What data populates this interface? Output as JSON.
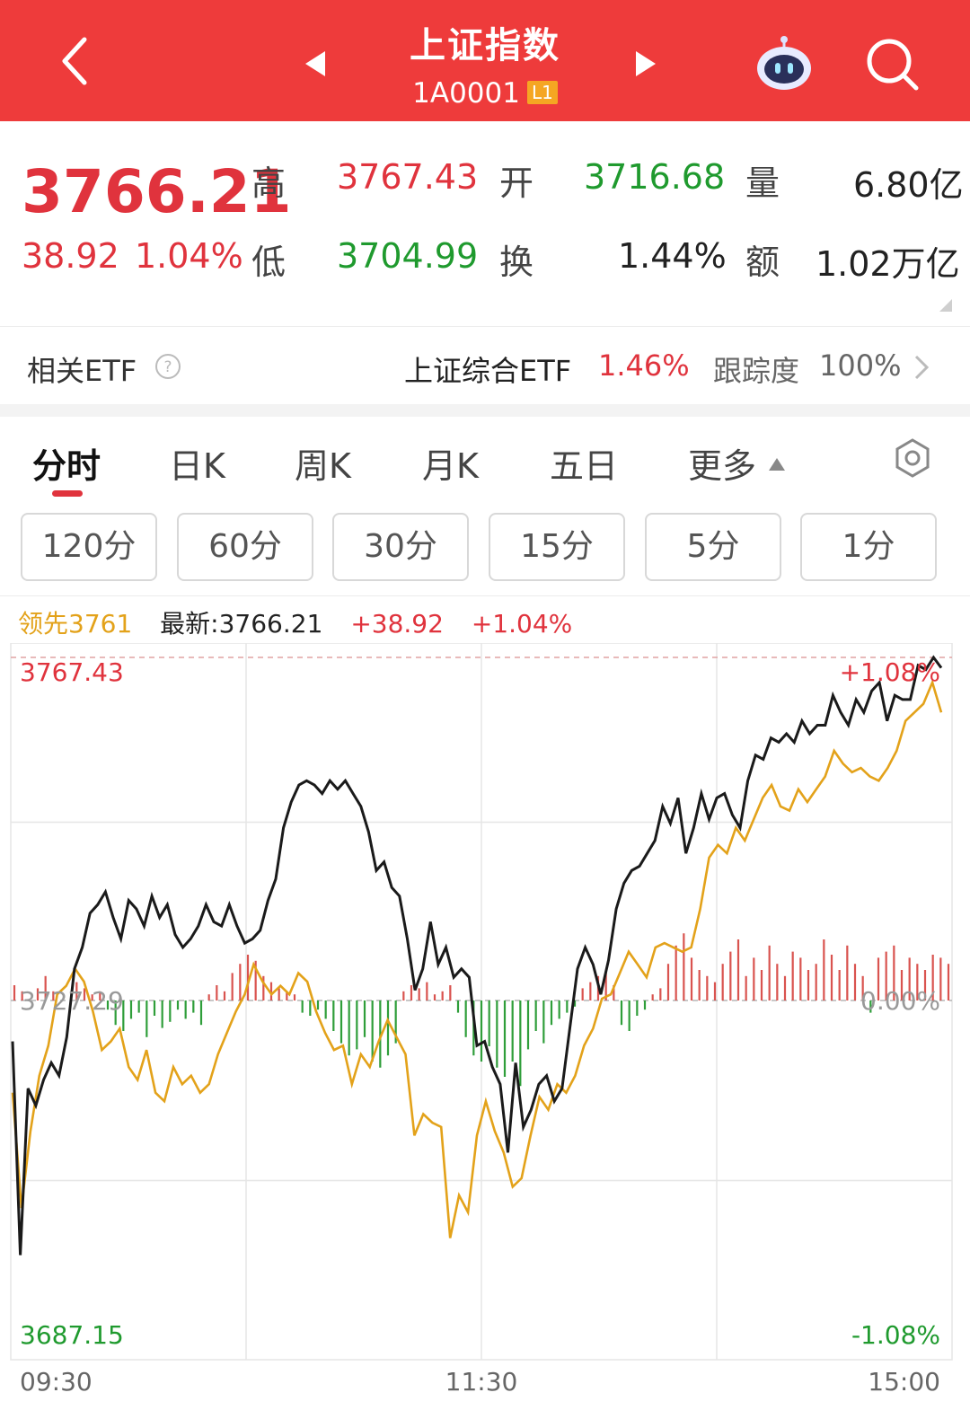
{
  "header": {
    "title": "上证指数",
    "code": "1A0001",
    "level_badge": "L1",
    "bg_color": "#ee3b3b"
  },
  "quote": {
    "price": "3766.21",
    "change": "38.92",
    "change_pct": "1.04%",
    "high_label": "高",
    "high": "3767.43",
    "low_label": "低",
    "low": "3704.99",
    "open_label": "开",
    "open": "3716.68",
    "turnover_label": "换",
    "turnover": "1.44%",
    "volume_label": "量",
    "volume": "6.80亿",
    "amount_label": "额",
    "amount": "1.02万亿",
    "up_color": "#e0333d",
    "down_color": "#1f9a2e"
  },
  "etf": {
    "label": "相关ETF",
    "name": "上证综合ETF",
    "pct": "1.46%",
    "track_label": "跟踪度",
    "track_value": "100%"
  },
  "tabs": [
    "分时",
    "日K",
    "周K",
    "月K",
    "五日",
    "更多"
  ],
  "active_tab": "分时",
  "periods": [
    "120分",
    "60分",
    "30分",
    "15分",
    "5分",
    "1分"
  ],
  "legend": {
    "lead": "领先3761",
    "latest": "最新:3766.21",
    "change": "+38.92",
    "pct": "+1.04%"
  },
  "chart_data": {
    "type": "line",
    "y_top_label": "3767.43",
    "y_mid_label": "3727.29",
    "y_bottom_label": "3687.15",
    "pct_top_label": "+1.08%",
    "pct_mid_label": "0.00%",
    "pct_bottom_label": "-1.08%",
    "x_labels": [
      "09:30",
      "11:30",
      "15:00"
    ],
    "ylim": [
      3687.15,
      3767.43
    ],
    "y_ref": 3727.29,
    "price_color": "#1a1a1a",
    "lead_color": "#e3a21a",
    "price": [
      3722.5,
      3697.5,
      3717.0,
      3715.0,
      3718.0,
      3720.0,
      3718.5,
      3723.0,
      3731.0,
      3733.5,
      3737.5,
      3738.5,
      3740.0,
      3737.0,
      3734.5,
      3739.0,
      3738.0,
      3736.0,
      3739.5,
      3737.0,
      3738.5,
      3735.0,
      3733.5,
      3734.5,
      3736.0,
      3738.5,
      3736.5,
      3736.0,
      3738.5,
      3736.0,
      3734.0,
      3734.5,
      3735.5,
      3739.0,
      3741.5,
      3747.5,
      3750.5,
      3752.5,
      3753.0,
      3752.5,
      3751.5,
      3753.0,
      3752.0,
      3753.0,
      3751.5,
      3750.0,
      3747.0,
      3742.5,
      3743.5,
      3740.5,
      3739.5,
      3734.5,
      3728.5,
      3731.0,
      3736.5,
      3731.5,
      3733.5,
      3730.0,
      3731.0,
      3730.0,
      3722.0,
      3722.5,
      3719.5,
      3717.5,
      3709.5,
      3720.0,
      3712.5,
      3714.5,
      3717.5,
      3718.5,
      3715.5,
      3717.0,
      3724.0,
      3731.0,
      3733.5,
      3731.5,
      3728.0,
      3732.0,
      3738.0,
      3741.0,
      3742.5,
      3743.0,
      3744.5,
      3746.0,
      3750.0,
      3748.0,
      3751.0,
      3744.5,
      3747.5,
      3751.5,
      3748.5,
      3751.0,
      3751.5,
      3749.0,
      3747.5,
      3753.0,
      3756.0,
      3755.5,
      3758.0,
      3757.5,
      3758.5,
      3757.5,
      3760.0,
      3758.5,
      3759.5,
      3759.5,
      3763.0,
      3761.0,
      3759.5,
      3762.5,
      3761.0,
      3763.5,
      3764.5,
      3760.0,
      3763.0,
      3762.5,
      3762.5,
      3766.5,
      3766.0,
      3767.43,
      3766.21
    ],
    "lead": [
      3716.5,
      3703.0,
      3712.0,
      3718.5,
      3722.0,
      3728.0,
      3729.0,
      3731.0,
      3729.5,
      3726.0,
      3721.5,
      3722.5,
      3724.0,
      3719.5,
      3718.0,
      3721.5,
      3716.5,
      3715.5,
      3719.5,
      3717.5,
      3718.5,
      3716.5,
      3717.5,
      3721.0,
      3723.5,
      3726.0,
      3728.0,
      3731.5,
      3729.5,
      3728.0,
      3729.0,
      3728.0,
      3730.5,
      3729.5,
      3726.0,
      3723.5,
      3721.5,
      3722.0,
      3717.5,
      3721.0,
      3719.5,
      3722.5,
      3725.0,
      3723.0,
      3721.0,
      3711.5,
      3714.0,
      3713.0,
      3712.5,
      3699.5,
      3704.5,
      3702.5,
      3711.5,
      3715.5,
      3712.0,
      3709.5,
      3705.5,
      3706.5,
      3711.5,
      3716.0,
      3714.5,
      3717.5,
      3716.5,
      3718.5,
      3722.0,
      3724.0,
      3727.5,
      3728.0,
      3730.5,
      3733.0,
      3731.5,
      3730.0,
      3733.5,
      3734.0,
      3733.5,
      3733.0,
      3733.5,
      3738.0,
      3744.0,
      3745.5,
      3744.5,
      3747.5,
      3746.0,
      3748.5,
      3751.0,
      3752.5,
      3750.0,
      3749.5,
      3752.0,
      3750.5,
      3752.0,
      3753.5,
      3756.5,
      3755.0,
      3754.0,
      3754.5,
      3753.5,
      3753.0,
      3754.5,
      3756.5,
      3760.0,
      3761.0,
      3762.0,
      3764.5,
      3761.0
    ],
    "volume": [
      5,
      3,
      0,
      4,
      8,
      3,
      0,
      0,
      6,
      4,
      2,
      3,
      -3,
      -8,
      -10,
      -6,
      -4,
      -12,
      -5,
      -9,
      -7,
      -3,
      -6,
      -4,
      -8,
      2,
      5,
      3,
      9,
      12,
      15,
      13,
      8,
      6,
      4,
      3,
      2,
      -4,
      -5,
      -3,
      -6,
      -10,
      -14,
      -18,
      -16,
      -12,
      -20,
      -22,
      -18,
      -14,
      3,
      5,
      4,
      6,
      2,
      3,
      5,
      -4,
      -12,
      -18,
      -20,
      -15,
      -22,
      -25,
      -20,
      -28,
      -16,
      -10,
      -14,
      -8,
      -6,
      -4,
      -2,
      4,
      6,
      8,
      10,
      5,
      -8,
      -10,
      -5,
      -3,
      2,
      4,
      12,
      18,
      22,
      14,
      10,
      8,
      6,
      12,
      16,
      20,
      8,
      14,
      10,
      18,
      12,
      8,
      16,
      14,
      10,
      12,
      20,
      15,
      10,
      18,
      12,
      8,
      -4,
      14,
      16,
      18,
      10,
      14,
      12,
      10,
      15,
      14,
      12
    ]
  }
}
